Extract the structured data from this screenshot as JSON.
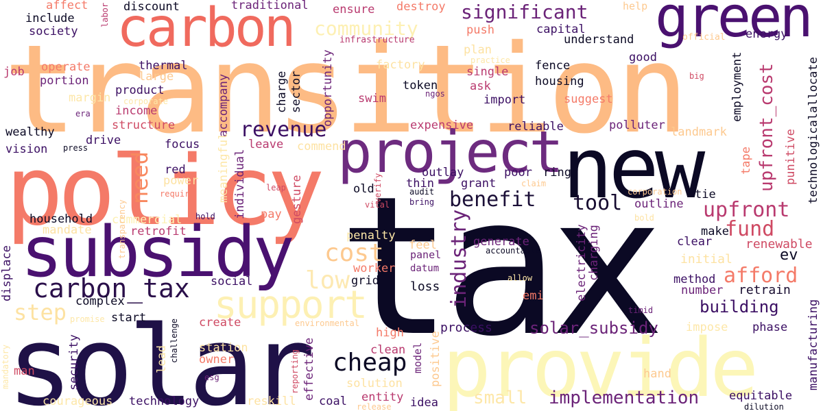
{
  "words": [
    {
      "text": "transition",
      "color": "#fdbb84",
      "size": "xl2"
    },
    {
      "text": "tax",
      "color": "#0b0924",
      "size": "xl4"
    },
    {
      "text": "solar",
      "color": "#1f1147",
      "size": "xl3"
    },
    {
      "text": "provide",
      "color": "#fcf6b8",
      "size": "xl2"
    },
    {
      "text": "policy",
      "color": "#f47a68",
      "size": "xl2"
    },
    {
      "text": "new",
      "color": "#0b0924",
      "size": "xl1"
    },
    {
      "text": "subsidy",
      "color": "#4a1170",
      "size": "xl1"
    },
    {
      "text": "green",
      "color": "#4a1170",
      "size": "l1"
    },
    {
      "text": "carbon",
      "color": "#f06a5e",
      "size": "l1"
    },
    {
      "text": "project",
      "color": "#6d2b7f",
      "size": "l1"
    },
    {
      "text": "support",
      "color": "#fdf0b3",
      "size": "l2"
    },
    {
      "text": "carbon_tax",
      "color": "#2a0f4a",
      "size": "m1"
    },
    {
      "text": "revenue",
      "color": "#3b0f63",
      "size": "m2"
    },
    {
      "text": "significant",
      "color": "#6b2378",
      "size": "m2"
    },
    {
      "text": "community",
      "color": "#fdf0b3",
      "size": "m2"
    },
    {
      "text": "benefit",
      "color": "#1b0f37",
      "size": "m2"
    },
    {
      "text": "tool",
      "color": "#170c30",
      "size": "m2"
    },
    {
      "text": "upfront",
      "color": "#b93a6f",
      "size": "m2"
    },
    {
      "text": "fund",
      "color": "#cf4a63",
      "size": "m2"
    },
    {
      "text": "afford",
      "color": "#f47a68",
      "size": "m2"
    },
    {
      "text": "cheap",
      "color": "#0b0924",
      "size": "m1"
    },
    {
      "text": "cost",
      "color": "#fdc98f",
      "size": "m1"
    },
    {
      "text": "low",
      "color": "#fde9b2",
      "size": "m1"
    },
    {
      "text": "step",
      "color": "#fde2a2",
      "size": "m1"
    },
    {
      "text": "need",
      "color": "#f8885f",
      "size": "m2"
    },
    {
      "text": "industry",
      "color": "#6b2378",
      "size": "m2"
    },
    {
      "text": "upfront_cost",
      "color": "#b93a6f",
      "size": "m3"
    },
    {
      "text": "small",
      "color": "#fde7a8",
      "size": "m2"
    },
    {
      "text": "implementation",
      "color": "#6b2378",
      "size": "m3"
    },
    {
      "text": "solar_subsidy",
      "color": "#6b2378",
      "size": "m3"
    },
    {
      "text": "building",
      "color": "#3b0f63",
      "size": "m3"
    },
    {
      "text": "ev",
      "color": "#0b0924",
      "size": "m3"
    },
    {
      "text": "renewable",
      "color": "#cf4a63",
      "size": "s1"
    },
    {
      "text": "initial",
      "color": "#fde2a2",
      "size": "s1"
    },
    {
      "text": "retrain",
      "color": "#170c30",
      "size": "s1"
    },
    {
      "text": "number",
      "color": "#6b2378",
      "size": "s1"
    },
    {
      "text": "method",
      "color": "#3b0f63",
      "size": "s1"
    },
    {
      "text": "clear",
      "color": "#3b0f63",
      "size": "s1"
    },
    {
      "text": "make",
      "color": "#0b0924",
      "size": "s1"
    },
    {
      "text": "process",
      "color": "#3b0f63",
      "size": "s1"
    },
    {
      "text": "generate",
      "color": "#6b2378",
      "size": "s1"
    },
    {
      "text": "accountable",
      "color": "#0b0924",
      "size": "xs"
    },
    {
      "text": "panel",
      "color": "#6b2378",
      "size": "s2"
    },
    {
      "text": "datum",
      "color": "#6b2378",
      "size": "s2"
    },
    {
      "text": "loss",
      "color": "#0b0924",
      "size": "s1"
    },
    {
      "text": "feel",
      "color": "#fdc98f",
      "size": "s1"
    },
    {
      "text": "worker",
      "color": "#f47a68",
      "size": "s1"
    },
    {
      "text": "grid",
      "color": "#0b0924",
      "size": "s1"
    },
    {
      "text": "social",
      "color": "#3b0f63",
      "size": "s1"
    },
    {
      "text": "complex",
      "color": "#0b0924",
      "size": "s1"
    },
    {
      "text": "start",
      "color": "#0b0924",
      "size": "s1"
    },
    {
      "text": "create",
      "color": "#cf4a63",
      "size": "s1"
    },
    {
      "text": "station",
      "color": "#fde2a2",
      "size": "s1"
    },
    {
      "text": "owner",
      "color": "#f47a68",
      "size": "s1"
    },
    {
      "text": "technology",
      "color": "#3b0f63",
      "size": "s1"
    },
    {
      "text": "courageous",
      "color": "#fde7a8",
      "size": "s1"
    },
    {
      "text": "man",
      "color": "#cf4a63",
      "size": "s1"
    },
    {
      "text": "household",
      "color": "#0b0924",
      "size": "s1"
    },
    {
      "text": "mandate",
      "color": "#fde2a2",
      "size": "s1"
    },
    {
      "text": "commercial",
      "color": "#fdf0b3",
      "size": "s1"
    },
    {
      "text": "retrofit",
      "color": "#b93a6f",
      "size": "s1"
    },
    {
      "text": "include",
      "color": "#0b0924",
      "size": "s1"
    },
    {
      "text": "society",
      "color": "#3b0f63",
      "size": "s1"
    },
    {
      "text": "affect",
      "color": "#f47a68",
      "size": "s1"
    },
    {
      "text": "discount",
      "color": "#0b0924",
      "size": "s1"
    },
    {
      "text": "traditional",
      "color": "#6b2378",
      "size": "s1"
    },
    {
      "text": "ensure",
      "color": "#b93a6f",
      "size": "s1"
    },
    {
      "text": "destroy",
      "color": "#f47a68",
      "size": "s1"
    },
    {
      "text": "help",
      "color": "#fdc98f",
      "size": "s2"
    },
    {
      "text": "capital",
      "color": "#3b0f63",
      "size": "s1"
    },
    {
      "text": "understand",
      "color": "#0b0924",
      "size": "s1"
    },
    {
      "text": "energy",
      "color": "#3b0f63",
      "size": "s1"
    },
    {
      "text": "official",
      "color": "#fdc98f",
      "size": "xs"
    },
    {
      "text": "push",
      "color": "#f47a68",
      "size": "s1"
    },
    {
      "text": "infrastructure",
      "color": "#b93a6f",
      "size": "xs"
    },
    {
      "text": "plan",
      "color": "#fde2a2",
      "size": "s1"
    },
    {
      "text": "practice",
      "color": "#fde7a8",
      "size": "xs"
    },
    {
      "text": "good",
      "color": "#3b0f63",
      "size": "s1"
    },
    {
      "text": "fence",
      "color": "#0b0924",
      "size": "s1"
    },
    {
      "text": "housing",
      "color": "#0b0924",
      "size": "s1"
    },
    {
      "text": "single",
      "color": "#b93a6f",
      "size": "s1"
    },
    {
      "text": "ask",
      "color": "#b93a6f",
      "size": "s1"
    },
    {
      "text": "suggest",
      "color": "#f47a68",
      "size": "s1"
    },
    {
      "text": "token",
      "color": "#0b0924",
      "size": "s1"
    },
    {
      "text": "ngos",
      "color": "#6b2378",
      "size": "xs"
    },
    {
      "text": "import",
      "color": "#3b0f63",
      "size": "s1"
    },
    {
      "text": "factory",
      "color": "#fde2a2",
      "size": "s1"
    },
    {
      "text": "swim",
      "color": "#b93a6f",
      "size": "s1"
    },
    {
      "text": "expensive",
      "color": "#b93a6f",
      "size": "s1"
    },
    {
      "text": "reliable",
      "color": "#3b0f63",
      "size": "s1"
    },
    {
      "text": "polluter",
      "color": "#6b2378",
      "size": "s1"
    },
    {
      "text": "landmark",
      "color": "#fdc98f",
      "size": "s1"
    },
    {
      "text": "job",
      "color": "#b93a6f",
      "size": "s1"
    },
    {
      "text": "operate",
      "color": "#f47a68",
      "size": "s1"
    },
    {
      "text": "portion",
      "color": "#6b2378",
      "size": "s1"
    },
    {
      "text": "thermal",
      "color": "#3b0f63",
      "size": "s1"
    },
    {
      "text": "large",
      "color": "#fdc98f",
      "size": "s1"
    },
    {
      "text": "product",
      "color": "#3b0f63",
      "size": "s1"
    },
    {
      "text": "corporate",
      "color": "#fde7a8",
      "size": "xs"
    },
    {
      "text": "margin",
      "color": "#fde7a8",
      "size": "s1"
    },
    {
      "text": "income",
      "color": "#b93a6f",
      "size": "s1"
    },
    {
      "text": "era",
      "color": "#6b2378",
      "size": "xs"
    },
    {
      "text": "structure",
      "color": "#cf4a63",
      "size": "s1"
    },
    {
      "text": "wealthy",
      "color": "#0b0924",
      "size": "s1"
    },
    {
      "text": "drive",
      "color": "#3b0f63",
      "size": "s1"
    },
    {
      "text": "vision",
      "color": "#3b0f63",
      "size": "s1"
    },
    {
      "text": "press",
      "color": "#0b0924",
      "size": "xs"
    },
    {
      "text": "focus",
      "color": "#3b0f63",
      "size": "s1"
    },
    {
      "text": "leave",
      "color": "#b93a6f",
      "size": "s1"
    },
    {
      "text": "commend",
      "color": "#fde2a2",
      "size": "s1"
    },
    {
      "text": "red",
      "color": "#3b0f63",
      "size": "s1"
    },
    {
      "text": "power",
      "color": "#fde2a2",
      "size": "s1"
    },
    {
      "text": "require",
      "color": "#f47a68",
      "size": "xs"
    },
    {
      "text": "leap",
      "color": "#cf4a63",
      "size": "xs"
    },
    {
      "text": "hold",
      "color": "#3b0f63",
      "size": "xs"
    },
    {
      "text": "vital",
      "color": "#cf4a63",
      "size": "xs"
    },
    {
      "text": "verify",
      "color": "#cf4a63",
      "size": "xs"
    },
    {
      "text": "bring",
      "color": "#3b0f63",
      "size": "xs"
    },
    {
      "text": "audit",
      "color": "#0b0924",
      "size": "xs"
    },
    {
      "text": "pay",
      "color": "#f47a68",
      "size": "s1"
    },
    {
      "text": "old",
      "color": "#0b0924",
      "size": "s1"
    },
    {
      "text": "thin",
      "color": "#3b0f63",
      "size": "s1"
    },
    {
      "text": "grant",
      "color": "#3b0f63",
      "size": "s1"
    },
    {
      "text": "outlay",
      "color": "#3b0f63",
      "size": "s1"
    },
    {
      "text": "poor",
      "color": "#3b0f63",
      "size": "s1"
    },
    {
      "text": "ring",
      "color": "#0b0924",
      "size": "s1"
    },
    {
      "text": "claim",
      "color": "#fdc98f",
      "size": "xs"
    },
    {
      "text": "outline",
      "color": "#6b2378",
      "size": "s1"
    },
    {
      "text": "tie",
      "color": "#0b0924",
      "size": "s1"
    },
    {
      "text": "corporation",
      "color": "#fdc98f",
      "size": "xs"
    },
    {
      "text": "bold",
      "color": "#fde2a2",
      "size": "xs"
    },
    {
      "text": "penalty",
      "color": "#fde7a8",
      "size": "s1"
    },
    {
      "text": "allow",
      "color": "#fde7a8",
      "size": "xs"
    },
    {
      "text": "emi",
      "color": "#f47a68",
      "size": "s1"
    },
    {
      "text": "timid",
      "color": "#6b2378",
      "size": "xs"
    },
    {
      "text": "impose",
      "color": "#fde7a8",
      "size": "s1"
    },
    {
      "text": "phase",
      "color": "#3b0f63",
      "size": "s1"
    },
    {
      "text": "high",
      "color": "#f47a68",
      "size": "s1"
    },
    {
      "text": "clean",
      "color": "#b93a6f",
      "size": "s1"
    },
    {
      "text": "solution",
      "color": "#fde2a2",
      "size": "s1"
    },
    {
      "text": "entity",
      "color": "#b93a6f",
      "size": "s1"
    },
    {
      "text": "idea",
      "color": "#3b0f63",
      "size": "s1"
    },
    {
      "text": "coal",
      "color": "#3b0f63",
      "size": "s1"
    },
    {
      "text": "reskill",
      "color": "#fde2a2",
      "size": "s1"
    },
    {
      "text": "release",
      "color": "#fdc98f",
      "size": "xs"
    },
    {
      "text": "hand",
      "color": "#fdc98f",
      "size": "s1"
    },
    {
      "text": "equitable",
      "color": "#3b0f63",
      "size": "s1"
    },
    {
      "text": "dilution",
      "color": "#0b0924",
      "size": "xs"
    },
    {
      "text": "esg",
      "color": "#6b2378",
      "size": "xs"
    },
    {
      "text": "environmental",
      "color": "#fdc98f",
      "size": "xs"
    },
    {
      "text": "promise",
      "color": "#fde7a8",
      "size": "xs"
    },
    {
      "text": "labor",
      "color": "#b93a6f",
      "size": "xs"
    },
    {
      "text": "big",
      "color": "#cf4a63",
      "size": "xs"
    },
    {
      "text": "employment",
      "color": "#0b0924",
      "size": "s1"
    },
    {
      "text": "technological",
      "color": "#0b0924",
      "size": "s1"
    },
    {
      "text": "allocate",
      "color": "#0b0924",
      "size": "s1"
    },
    {
      "text": "tape",
      "color": "#f47a68",
      "size": "s1"
    },
    {
      "text": "punitive",
      "color": "#cf4a63",
      "size": "s1"
    },
    {
      "text": "manufacturing",
      "color": "#3b0f63",
      "size": "s1"
    },
    {
      "text": "opportunity",
      "color": "#6b2378",
      "size": "s1"
    },
    {
      "text": "charge",
      "color": "#0b0924",
      "size": "s1"
    },
    {
      "text": "sector",
      "color": "#0b0924",
      "size": "s1"
    },
    {
      "text": "accompany",
      "color": "#6b2378",
      "size": "s1"
    },
    {
      "text": "meaningful",
      "color": "#fde7a8",
      "size": "s1"
    },
    {
      "text": "individual",
      "color": "#6b2378",
      "size": "s1"
    },
    {
      "text": "gesture",
      "color": "#cf4a63",
      "size": "s1"
    },
    {
      "text": "transparency",
      "color": "#fdc98f",
      "size": "xs"
    },
    {
      "text": "displace",
      "color": "#3b0f63",
      "size": "s1"
    },
    {
      "text": "security",
      "color": "#3b0f63",
      "size": "s1"
    },
    {
      "text": "mandatory",
      "color": "#fde7a8",
      "size": "xs"
    },
    {
      "text": "challenge",
      "color": "#0b0924",
      "size": "xs"
    },
    {
      "text": "lead",
      "color": "#fde7a8",
      "size": "s1"
    },
    {
      "text": "effective",
      "color": "#6b2378",
      "size": "s1"
    },
    {
      "text": "reporting",
      "color": "#cf4a63",
      "size": "xs"
    },
    {
      "text": "model",
      "color": "#6b2378",
      "size": "s2"
    },
    {
      "text": "positive",
      "color": "#fdc98f",
      "size": "s1"
    },
    {
      "text": "electricity",
      "color": "#6b2378",
      "size": "s1"
    },
    {
      "text": "charging",
      "color": "#6b2378",
      "size": "s1"
    }
  ]
}
